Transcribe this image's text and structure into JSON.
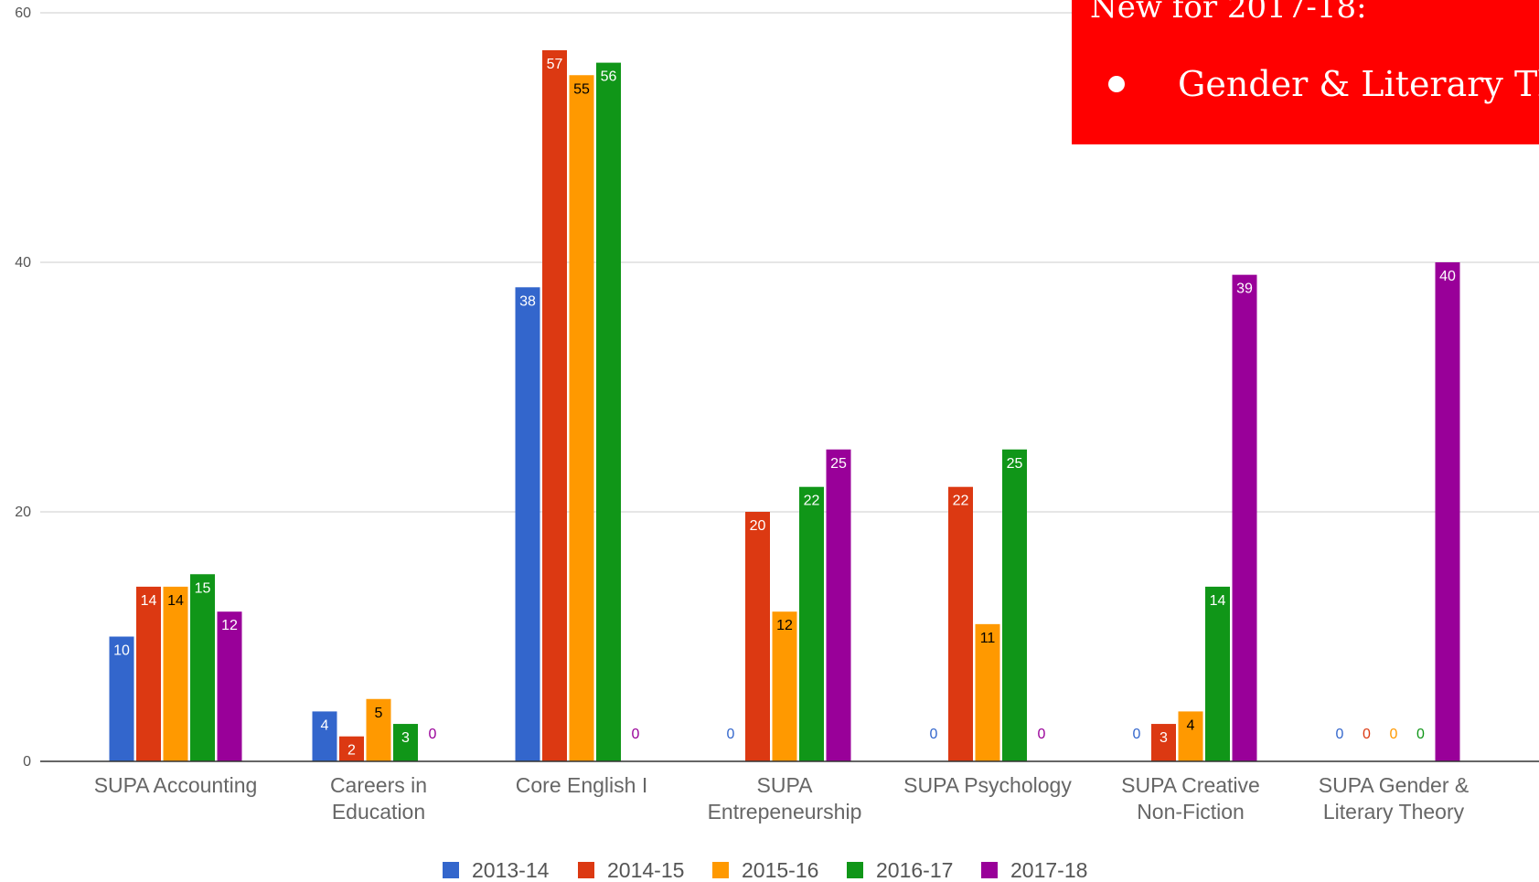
{
  "callout": {
    "title": "New for 2017-18:",
    "items": [
      "Gender & Literary Theory"
    ]
  },
  "colors": {
    "2013-14": "#3366cc",
    "2014-15": "#dc3912",
    "2015-16": "#ff9900",
    "2016-17": "#109618",
    "2017-18": "#990099",
    "callout_bg": "#ff0000",
    "grid": "#cccccc",
    "axis": "#333333"
  },
  "chart_data": {
    "type": "bar",
    "title": "",
    "xlabel": "",
    "ylabel": "",
    "ylim": [
      0,
      60
    ],
    "yticks": [
      0,
      20,
      40,
      60
    ],
    "grid": true,
    "legend_position": "bottom",
    "categories": [
      [
        "SUPA Accounting"
      ],
      [
        "Careers in",
        "Education"
      ],
      [
        "Core English I"
      ],
      [
        "SUPA",
        "Entrepeneurship"
      ],
      [
        "SUPA Psychology"
      ],
      [
        "SUPA Creative",
        "Non-Fiction"
      ],
      [
        "SUPA Gender &",
        "Literary Theory"
      ]
    ],
    "series": [
      {
        "name": "2013-14",
        "values": [
          10,
          4,
          38,
          0,
          0,
          0,
          0
        ]
      },
      {
        "name": "2014-15",
        "values": [
          14,
          2,
          57,
          20,
          22,
          3,
          0
        ]
      },
      {
        "name": "2015-16",
        "values": [
          14,
          5,
          55,
          12,
          11,
          4,
          0
        ]
      },
      {
        "name": "2016-17",
        "values": [
          15,
          3,
          56,
          22,
          25,
          14,
          0
        ]
      },
      {
        "name": "2017-18",
        "values": [
          12,
          0,
          0,
          25,
          0,
          39,
          40
        ]
      }
    ]
  }
}
